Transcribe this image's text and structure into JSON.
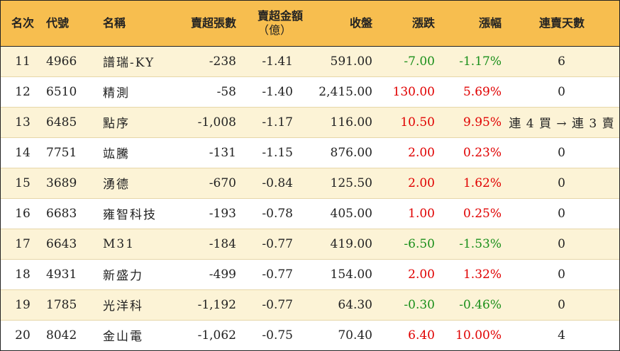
{
  "table": {
    "headers": {
      "rank": "名次",
      "code": "代號",
      "name": "名稱",
      "net_sell_lots": "賣超張數",
      "net_sell_amount_line1": "賣超金額",
      "net_sell_amount_line2": "（億）",
      "close": "收盤",
      "change": "漲跌",
      "change_pct": "漲幅",
      "streak": "連賣天數"
    },
    "rows": [
      {
        "rank": "11",
        "code": "4966",
        "name": "譜瑞-KY",
        "net_sell_lots": "-238",
        "net_sell_amount": "-1.41",
        "close": "591.00",
        "change": "-7.00",
        "change_pct": "-1.17%",
        "streak": "6",
        "direction": "down"
      },
      {
        "rank": "12",
        "code": "6510",
        "name": "精測",
        "net_sell_lots": "-58",
        "net_sell_amount": "-1.40",
        "close": "2,415.00",
        "change": "130.00",
        "change_pct": "5.69%",
        "streak": "0",
        "direction": "up"
      },
      {
        "rank": "13",
        "code": "6485",
        "name": "點序",
        "net_sell_lots": "-1,008",
        "net_sell_amount": "-1.17",
        "close": "116.00",
        "change": "10.50",
        "change_pct": "9.95%",
        "streak": "連 4 買 → 連 3 賣",
        "direction": "up"
      },
      {
        "rank": "14",
        "code": "7751",
        "name": "竑騰",
        "net_sell_lots": "-131",
        "net_sell_amount": "-1.15",
        "close": "876.00",
        "change": "2.00",
        "change_pct": "0.23%",
        "streak": "0",
        "direction": "up"
      },
      {
        "rank": "15",
        "code": "3689",
        "name": "湧德",
        "net_sell_lots": "-670",
        "net_sell_amount": "-0.84",
        "close": "125.50",
        "change": "2.00",
        "change_pct": "1.62%",
        "streak": "0",
        "direction": "up"
      },
      {
        "rank": "16",
        "code": "6683",
        "name": "雍智科技",
        "net_sell_lots": "-193",
        "net_sell_amount": "-0.78",
        "close": "405.00",
        "change": "1.00",
        "change_pct": "0.25%",
        "streak": "0",
        "direction": "up"
      },
      {
        "rank": "17",
        "code": "6643",
        "name": "M31",
        "net_sell_lots": "-184",
        "net_sell_amount": "-0.77",
        "close": "419.00",
        "change": "-6.50",
        "change_pct": "-1.53%",
        "streak": "0",
        "direction": "down"
      },
      {
        "rank": "18",
        "code": "4931",
        "name": "新盛力",
        "net_sell_lots": "-499",
        "net_sell_amount": "-0.77",
        "close": "154.00",
        "change": "2.00",
        "change_pct": "1.32%",
        "streak": "0",
        "direction": "up"
      },
      {
        "rank": "19",
        "code": "1785",
        "name": "光洋科",
        "net_sell_lots": "-1,192",
        "net_sell_amount": "-0.77",
        "close": "64.30",
        "change": "-0.30",
        "change_pct": "-0.46%",
        "streak": "0",
        "direction": "down"
      },
      {
        "rank": "20",
        "code": "8042",
        "name": "金山電",
        "net_sell_lots": "-1,062",
        "net_sell_amount": "-0.75",
        "close": "70.40",
        "change": "6.40",
        "change_pct": "10.00%",
        "streak": "4",
        "direction": "up"
      }
    ]
  },
  "colors": {
    "header_bg": "#f7be4f",
    "row_alt_bg": "#fcf3d6",
    "up": "#e00000",
    "down": "#1a8f1a"
  }
}
